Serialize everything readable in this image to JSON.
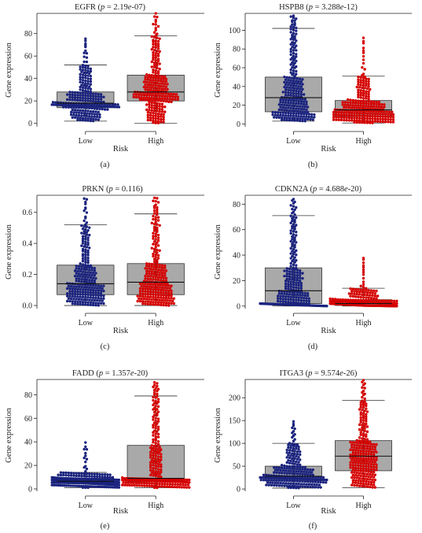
{
  "figure": {
    "colors": {
      "low": "#1a237e",
      "high": "#d50000",
      "box": "#a9a9a9",
      "axis": "#222222"
    },
    "panels": [
      {
        "gene": "EGFR",
        "p_label": "p",
        "p_value": "2.19e-07",
        "panel_label": "(a)",
        "ylabel": "Gene expression",
        "xlabel": "Risk",
        "chart_data": {
          "type": "box-swarm",
          "categories": [
            "Low",
            "High"
          ],
          "ylim": [
            -3,
            98
          ],
          "yticks": [
            0,
            20,
            40,
            60,
            80
          ],
          "boxes": [
            {
              "name": "Low",
              "q1": 14,
              "median": 18,
              "q3": 28,
              "whisker_low": 2,
              "whisker_high": 52,
              "max_point": 76,
              "n": 250
            },
            {
              "name": "High",
              "q1": 20,
              "median": 28,
              "q3": 43,
              "whisker_low": 0,
              "whisker_high": 78,
              "max_point": 98,
              "n": 250
            }
          ]
        }
      },
      {
        "gene": "HSPB8",
        "p_label": "p",
        "p_value": "3.288e-12",
        "panel_label": "(b)",
        "ylabel": "Gene expression",
        "xlabel": "Risk",
        "chart_data": {
          "type": "box-swarm",
          "categories": [
            "Low",
            "High"
          ],
          "ylim": [
            -3,
            118
          ],
          "yticks": [
            0,
            20,
            40,
            60,
            80,
            100
          ],
          "boxes": [
            {
              "name": "Low",
              "q1": 13,
              "median": 28,
              "q3": 50,
              "whisker_low": 3,
              "whisker_high": 102,
              "max_point": 116,
              "n": 250
            },
            {
              "name": "High",
              "q1": 8,
              "median": 15,
              "q3": 25,
              "whisker_low": 1,
              "whisker_high": 51,
              "max_point": 95,
              "n": 250
            }
          ]
        }
      },
      {
        "gene": "PRKN",
        "p_label": "p",
        "p_value": "0.116",
        "panel_label": "(c)",
        "ylabel": "Gene expression",
        "xlabel": "Risk",
        "chart_data": {
          "type": "box-swarm",
          "categories": [
            "Low",
            "High"
          ],
          "ylim": [
            -0.02,
            0.71
          ],
          "yticks": [
            0.0,
            0.2,
            0.4,
            0.6
          ],
          "boxes": [
            {
              "name": "Low",
              "q1": 0.07,
              "median": 0.14,
              "q3": 0.26,
              "whisker_low": 0.0,
              "whisker_high": 0.52,
              "max_point": 0.7,
              "n": 250
            },
            {
              "name": "High",
              "q1": 0.07,
              "median": 0.15,
              "q3": 0.27,
              "whisker_low": 0.0,
              "whisker_high": 0.59,
              "max_point": 0.7,
              "n": 250
            }
          ]
        }
      },
      {
        "gene": "CDKN2A",
        "p_label": "p",
        "p_value": "4.688e-20",
        "panel_label": "(d)",
        "ylabel": "Gene expression",
        "xlabel": "Risk",
        "chart_data": {
          "type": "box-swarm",
          "categories": [
            "Low",
            "High"
          ],
          "ylim": [
            -2,
            87
          ],
          "yticks": [
            0,
            20,
            40,
            60,
            80
          ],
          "boxes": [
            {
              "name": "Low",
              "q1": 2,
              "median": 12,
              "q3": 30,
              "whisker_low": 0,
              "whisker_high": 71,
              "max_point": 84,
              "n": 250
            },
            {
              "name": "High",
              "q1": 0.5,
              "median": 2,
              "q3": 5,
              "whisker_low": 0,
              "whisker_high": 14,
              "max_point": 39,
              "n": 250
            }
          ]
        }
      },
      {
        "gene": "FADD",
        "p_label": "p",
        "p_value": "1.357e-20",
        "panel_label": "(e)",
        "ylabel": "Gene expression",
        "xlabel": "Risk",
        "chart_data": {
          "type": "box-swarm",
          "categories": [
            "Low",
            "High"
          ],
          "ylim": [
            -2,
            93
          ],
          "yticks": [
            0,
            20,
            40,
            60,
            80
          ],
          "boxes": [
            {
              "name": "Low",
              "q1": 5,
              "median": 6.5,
              "q3": 9,
              "whisker_low": 1,
              "whisker_high": 14,
              "max_point": 40,
              "n": 250
            },
            {
              "name": "High",
              "q1": 6,
              "median": 9,
              "q3": 37,
              "whisker_low": 1,
              "whisker_high": 79,
              "max_point": 91,
              "n": 250
            }
          ]
        }
      },
      {
        "gene": "ITGA3",
        "p_label": "p",
        "p_value": "9.574e-26",
        "panel_label": "(f)",
        "ylabel": "Gene expression",
        "xlabel": "Risk",
        "chart_data": {
          "type": "box-swarm",
          "categories": [
            "Low",
            "High"
          ],
          "ylim": [
            -5,
            240
          ],
          "yticks": [
            0,
            50,
            100,
            150,
            200
          ],
          "boxes": [
            {
              "name": "Low",
              "q1": 18,
              "median": 28,
              "q3": 50,
              "whisker_low": 2,
              "whisker_high": 100,
              "max_point": 150,
              "n": 250
            },
            {
              "name": "High",
              "q1": 40,
              "median": 72,
              "q3": 106,
              "whisker_low": 3,
              "whisker_high": 194,
              "max_point": 240,
              "n": 250
            }
          ]
        }
      }
    ]
  }
}
